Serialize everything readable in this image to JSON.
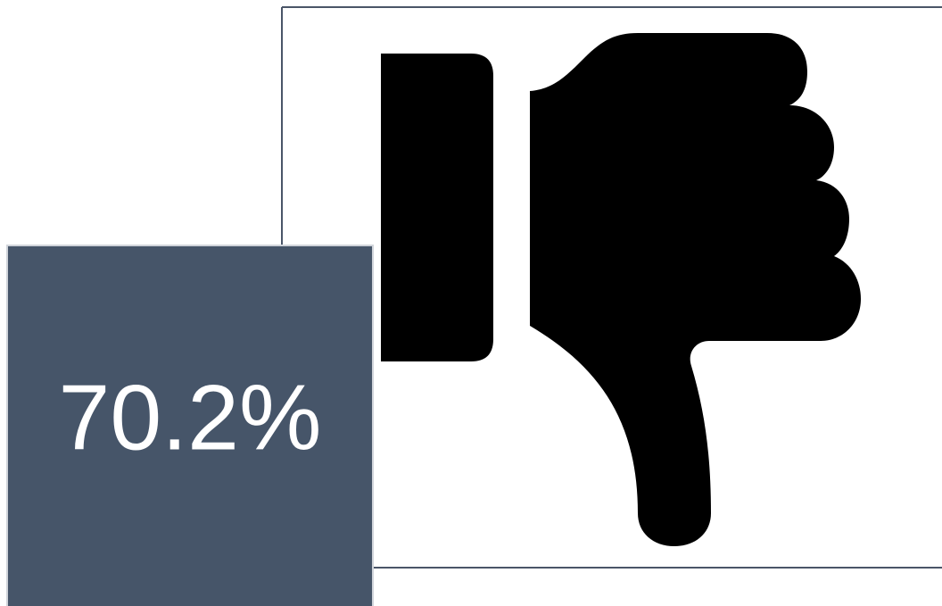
{
  "label": "70.2%"
}
